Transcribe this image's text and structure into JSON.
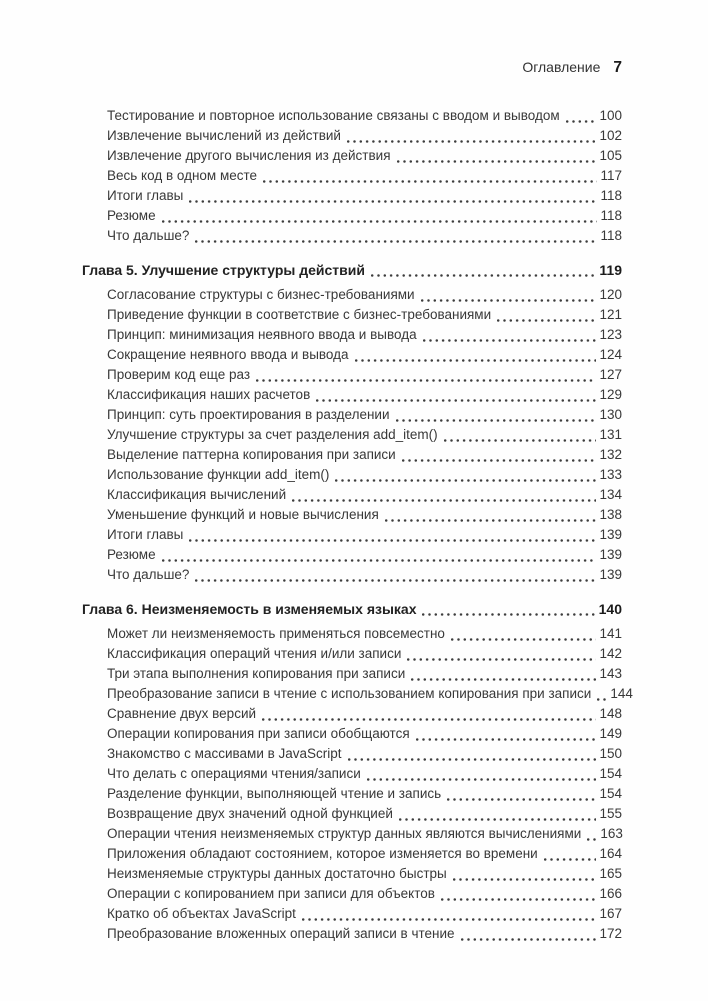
{
  "page": {
    "header": {
      "title": "Оглавление",
      "page_number": "7"
    },
    "colors": {
      "background": "#fefefe",
      "text": "#383838",
      "heading_text": "#222222",
      "dot_leader": "#3d3d3d"
    }
  },
  "toc": {
    "sections": [
      {
        "heading": null,
        "entries": [
          {
            "title": "Тестирование и повторное использование связаны с вводом и выводом",
            "page": "100"
          },
          {
            "title": "Извлечение вычислений из действий",
            "page": "102"
          },
          {
            "title": "Извлечение другого вычисления из действия",
            "page": "105"
          },
          {
            "title": "Весь код в одном месте",
            "page": "117"
          },
          {
            "title": "Итоги главы",
            "page": "118"
          },
          {
            "title": "Резюме",
            "page": "118"
          },
          {
            "title": "Что дальше?",
            "page": "118"
          }
        ]
      },
      {
        "heading": {
          "title": "Глава 5. Улучшение структуры действий",
          "page": "119"
        },
        "entries": [
          {
            "title": "Согласование структуры с бизнес-требованиями",
            "page": "120"
          },
          {
            "title": "Приведение функции в соответствие с бизнес-требованиями",
            "page": "121"
          },
          {
            "title": "Принцип: минимизация неявного ввода и вывода",
            "page": "123"
          },
          {
            "title": "Сокращение неявного ввода и вывода",
            "page": "124"
          },
          {
            "title": "Проверим код еще раз",
            "page": "127"
          },
          {
            "title": "Классификация наших расчетов",
            "page": "129"
          },
          {
            "title": "Принцип: суть проектирования в разделении",
            "page": "130"
          },
          {
            "title": "Улучшение структуры за счет разделения add_item()",
            "page": "131"
          },
          {
            "title": "Выделение паттерна копирования при записи",
            "page": "132"
          },
          {
            "title": "Использование функции add_item()",
            "page": "133"
          },
          {
            "title": "Классификация вычислений",
            "page": "134"
          },
          {
            "title": "Уменьшение функций и новые вычисления",
            "page": "138"
          },
          {
            "title": "Итоги главы",
            "page": "139"
          },
          {
            "title": "Резюме",
            "page": "139"
          },
          {
            "title": "Что дальше?",
            "page": "139"
          }
        ]
      },
      {
        "heading": {
          "title": "Глава 6. Неизменяемость в изменяемых языках",
          "page": "140"
        },
        "entries": [
          {
            "title": "Может ли неизменяемость применяться повсеместно",
            "page": "141"
          },
          {
            "title": "Классификация операций чтения и/или записи",
            "page": "142"
          },
          {
            "title": "Три этапа выполнения копирования при записи",
            "page": "143"
          },
          {
            "title": "Преобразование записи в чтение с использованием копирования при записи",
            "page": "144"
          },
          {
            "title": "Сравнение двух версий",
            "page": "148"
          },
          {
            "title": "Операции копирования при записи обобщаются",
            "page": "149"
          },
          {
            "title": "Знакомство с массивами в JavaScript",
            "page": "150"
          },
          {
            "title": "Что делать с операциями чтения/записи",
            "page": "154"
          },
          {
            "title": "Разделение функции, выполняющей чтение и запись",
            "page": "154"
          },
          {
            "title": "Возвращение двух значений одной функцией",
            "page": "155"
          },
          {
            "title": "Операции чтения неизменяемых структур данных являются вычислениями",
            "page": "163"
          },
          {
            "title": "Приложения обладают состоянием, которое изменяется во времени",
            "page": "164"
          },
          {
            "title": "Неизменяемые структуры данных достаточно быстры",
            "page": "165"
          },
          {
            "title": "Операции с копированием при записи для объектов",
            "page": "166"
          },
          {
            "title": "Кратко об объектах JavaScript",
            "page": "167"
          },
          {
            "title": "Преобразование вложенных операций записи в чтение",
            "page": "172"
          }
        ]
      }
    ]
  }
}
